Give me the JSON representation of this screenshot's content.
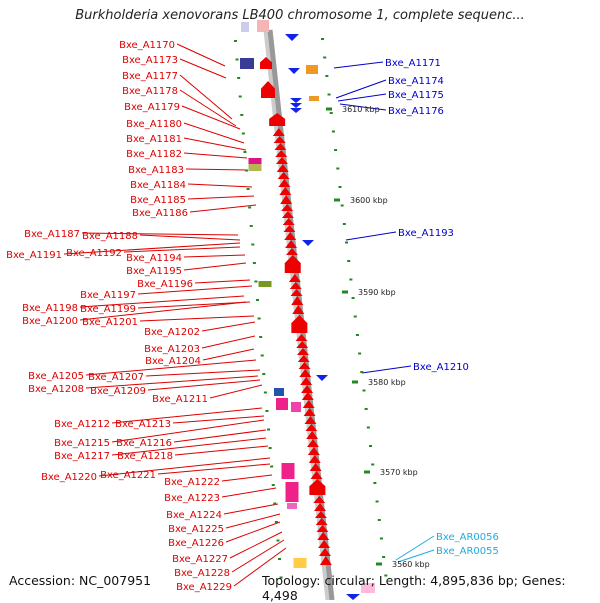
{
  "title": "Burkholderia xenovorans LB400 chromosome 1, complete sequenc...",
  "footer": {
    "accession": "Accession: NC_007951",
    "topology": "Topology: circular; Length: 4,895,836 bp; Genes: 4,498"
  },
  "colors": {
    "left_label": "#dd0000",
    "right_label": "#0000cc",
    "rna_label": "#22aadd",
    "tick": "#228822",
    "backbone": "#999999",
    "gene_forward": "#ee0000",
    "gene_reverse": "#1122ee"
  },
  "scale_labels": [
    "3610 kbp",
    "3600 kbp",
    "3590 kbp",
    "3580 kbp",
    "3570 kbp",
    "3560 kbp"
  ],
  "left_genes": [
    "Bxe_A1170",
    "Bxe_A1173",
    "Bxe_A1177",
    "Bxe_A1178",
    "Bxe_A1179",
    "Bxe_A1180",
    "Bxe_A1181",
    "Bxe_A1182",
    "Bxe_A1183",
    "Bxe_A1184",
    "Bxe_A1185",
    "Bxe_A1186",
    "Bxe_A1187",
    "Bxe_A1188",
    "Bxe_A1191",
    "Bxe_A1192",
    "Bxe_A1194",
    "Bxe_A1195",
    "Bxe_A1196",
    "Bxe_A1197",
    "Bxe_A1198",
    "Bxe_A1199",
    "Bxe_A1200",
    "Bxe_A1201",
    "Bxe_A1202",
    "Bxe_A1203",
    "Bxe_A1204",
    "Bxe_A1205",
    "Bxe_A1207",
    "Bxe_A1208",
    "Bxe_A1209",
    "Bxe_A1211",
    "Bxe_A1212",
    "Bxe_A1213",
    "Bxe_A1215",
    "Bxe_A1216",
    "Bxe_A1217",
    "Bxe_A1218",
    "Bxe_A1220",
    "Bxe_A1221",
    "Bxe_A1222",
    "Bxe_A1223",
    "Bxe_A1224",
    "Bxe_A1225",
    "Bxe_A1226",
    "Bxe_A1227",
    "Bxe_A1228",
    "Bxe_A1229"
  ],
  "right_genes": [
    "Bxe_A1171",
    "Bxe_A1174",
    "Bxe_A1175",
    "Bxe_A1176",
    "Bxe_A1193",
    "Bxe_A1210"
  ],
  "rna_genes": [
    "Bxe_AR0056",
    "Bxe_AR0055"
  ]
}
